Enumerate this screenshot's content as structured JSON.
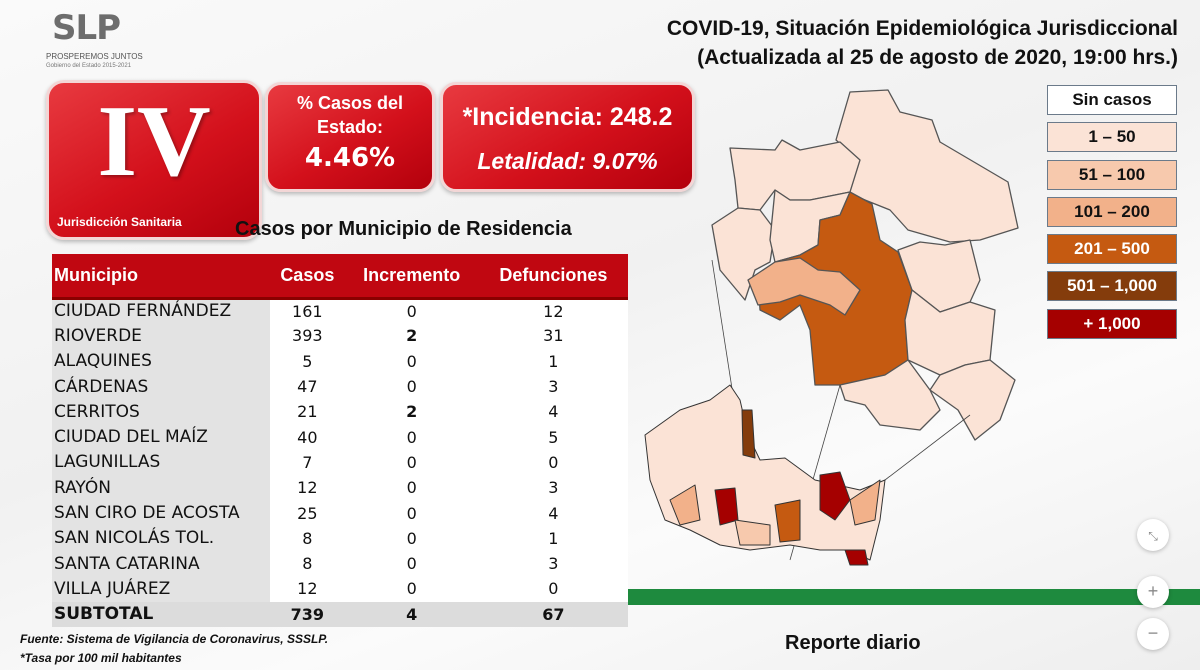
{
  "logo": {
    "mark": "SLP",
    "line1": "PROSPEREMOS JUNTOS",
    "line2": "Gobierno del Estado 2015-2021"
  },
  "header": {
    "title_line1": "COVID-19, Situación Epidemiológica Jurisdiccional",
    "title_line2": "(Actualizada al 25 de agosto de 2020, 19:00 hrs.)"
  },
  "jurisdiction": {
    "numeral": "IV",
    "label": "Jurisdicción Sanitaria"
  },
  "stats": {
    "pct_label": "% Casos del Estado:",
    "pct_value": "4.46%",
    "incidence": "*Incidencia: 248.2",
    "lethality": "Letalidad: 9.07%"
  },
  "table": {
    "title": "Casos por Municipio  de Residencia",
    "headers": [
      "Municipio",
      "Casos",
      "Incremento",
      "Defunciones"
    ],
    "rows": [
      [
        "CIUDAD FERNÁNDEZ",
        "161",
        "0",
        "12"
      ],
      [
        "RIOVERDE",
        "393",
        "2",
        "31"
      ],
      [
        "ALAQUINES",
        "5",
        "0",
        "1"
      ],
      [
        "CÁRDENAS",
        "47",
        "0",
        "3"
      ],
      [
        "CERRITOS",
        "21",
        "2",
        "4"
      ],
      [
        "CIUDAD DEL MAÍZ",
        "40",
        "0",
        "5"
      ],
      [
        "LAGUNILLAS",
        "7",
        "0",
        "0"
      ],
      [
        "RAYÓN",
        "12",
        "0",
        "3"
      ],
      [
        "SAN CIRO DE ACOSTA",
        "25",
        "0",
        "4"
      ],
      [
        "SAN NICOLÁS TOL.",
        "8",
        "0",
        "1"
      ],
      [
        "SANTA CATARINA",
        "8",
        "0",
        "3"
      ],
      [
        "VILLA JUÁREZ",
        "12",
        "0",
        "0"
      ]
    ],
    "subtotal": [
      "SUBTOTAL",
      "739",
      "4",
      "67"
    ]
  },
  "footnotes": {
    "source": "Fuente: Sistema de Vigilancia de Coronavirus, SSSLP.",
    "rate": "*Tasa por 100 mil habitantes"
  },
  "legend": [
    {
      "label": "Sin casos",
      "bg": "#ffffff",
      "fg": "#111111"
    },
    {
      "label": "1 – 50",
      "bg": "#fbe3d6",
      "fg": "#111111"
    },
    {
      "label": "51 – 100",
      "bg": "#f7c9ad",
      "fg": "#111111"
    },
    {
      "label": "101 – 200",
      "bg": "#f2b18a",
      "fg": "#111111"
    },
    {
      "label": "201 – 500",
      "bg": "#c55a11",
      "fg": "#ffffff"
    },
    {
      "label": "501 – 1,000",
      "bg": "#843c0c",
      "fg": "#ffffff"
    },
    {
      "label": "+ 1,000",
      "bg": "#a50000",
      "fg": "#ffffff"
    }
  ],
  "footer": {
    "report": "Reporte diario"
  },
  "controls": {
    "fit_icon": "fit-screen-icon",
    "zoom_in": "+",
    "zoom_out": "−"
  }
}
